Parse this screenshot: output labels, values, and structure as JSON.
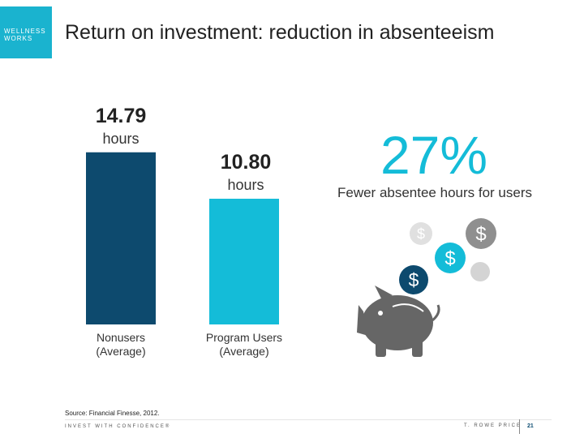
{
  "logo": {
    "line1": "WELLNESS",
    "line2": "WORKS"
  },
  "title": "Return on investment: reduction in absenteeism",
  "chart_data": {
    "type": "bar",
    "categories": [
      "Nonusers (Average)",
      "Program Users (Average)"
    ],
    "category_lines": [
      [
        "Nonusers",
        "(Average)"
      ],
      [
        "Program Users",
        "(Average)"
      ]
    ],
    "values": [
      14.79,
      10.8
    ],
    "value_labels": [
      "14.79",
      "10.80"
    ],
    "unit": "hours",
    "colors": [
      "#0d4a6e",
      "#14bcd8"
    ]
  },
  "callout": {
    "value": "27%",
    "text": "Fewer absentee hours for users",
    "color": "#14bcd8"
  },
  "coins": [
    {
      "name": "coin-light-gray",
      "symbol": "$",
      "color": "#e0e0e0"
    },
    {
      "name": "coin-gray",
      "symbol": "$",
      "color": "#8f8f8f"
    },
    {
      "name": "coin-cyan",
      "symbol": "$",
      "color": "#14bcd8"
    },
    {
      "name": "coin-navy",
      "symbol": "$",
      "color": "#0d4a6e"
    },
    {
      "name": "coin-small",
      "symbol": "",
      "color": "#d4d4d4"
    }
  ],
  "source": "Source: Financial Finesse, 2012.",
  "footer": {
    "tagline": "INVEST WITH CONFIDENCE®",
    "brand": "T. ROWE PRICE",
    "page": "21"
  }
}
